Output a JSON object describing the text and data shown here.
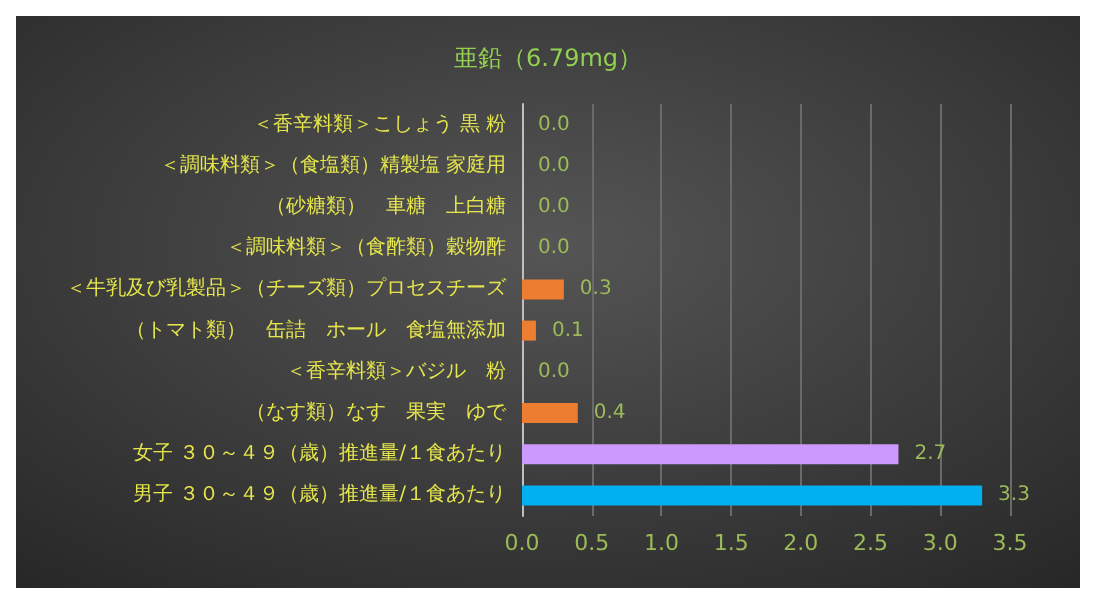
{
  "chart_data": {
    "type": "bar",
    "orientation": "horizontal",
    "title": "亜鉛（6.79mg）",
    "categories": [
      "＜香辛料類＞こしょう 黒 粉",
      "＜調味料類＞（食塩類）精製塩 家庭用",
      "（砂糖類）　車糖　上白糖",
      "＜調味料類＞（食酢類）穀物酢",
      "＜牛乳及び乳製品＞（チーズ類）プロセスチーズ",
      "（トマト類）　缶詰　ホール　食塩無添加",
      "＜香辛料類＞バジル　粉",
      "（なす類）なす　果実　ゆで",
      "女子 ３０～４９（歳）推進量/１食あたり",
      "男子 ３０～４９（歳）推進量/１食あたり"
    ],
    "values": [
      0.0,
      0.0,
      0.0,
      0.0,
      0.3,
      0.1,
      0.0,
      0.4,
      2.7,
      3.3
    ],
    "value_labels": [
      "0.0",
      "0.0",
      "0.0",
      "0.0",
      "0.3",
      "0.1",
      "0.0",
      "0.4",
      "2.7",
      "3.3"
    ],
    "colors": [
      "#ed7d31",
      "#ed7d31",
      "#ed7d31",
      "#ed7d31",
      "#ed7d31",
      "#ed7d31",
      "#ed7d31",
      "#ed7d31",
      "#cc99ff",
      "#00b0f0"
    ],
    "xlim": [
      0,
      3.5
    ],
    "xticks": [
      {
        "value": 0,
        "label": "0.0"
      },
      0.5,
      {
        "value": 1,
        "label": "1.0"
      },
      1.5,
      {
        "value": 2,
        "label": "2.0"
      },
      2.5,
      {
        "value": 3,
        "label": "3.0"
      },
      3.5
    ],
    "grid": "x"
  }
}
